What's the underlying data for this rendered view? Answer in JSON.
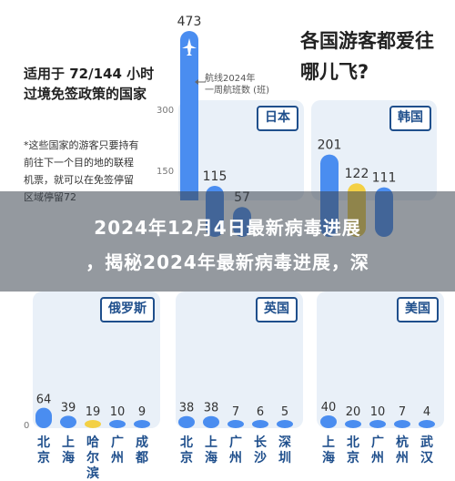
{
  "note": {
    "title": "适用于 72/144 小时过境免签政策的国家",
    "body": "*这些国家的游客只要持有前往下一个目的地的联程机票，就可以在免签停留区域停留72"
  },
  "headline": "各国游客都爱往哪儿飞?",
  "callout": {
    "line1": "航线2024年",
    "line2": "一周航班数 (班)"
  },
  "banner": {
    "line1": "2024年12月4日最新病毒进展",
    "line2": "，揭秘2024年最新病毒进展，深"
  },
  "axis": {
    "t300": "300",
    "t150": "150",
    "t0": "0"
  },
  "colors": {
    "primary": "#4a8df0",
    "highlight": "#f3d045",
    "panel": "#e9f0f8",
    "tag": "#1f4f8c"
  },
  "chart_data": [
    {
      "type": "bar",
      "title": "日本",
      "ylabel": "",
      "ylim": [
        0,
        473
      ],
      "categories": [
        "",
        "",
        ""
      ],
      "values": [
        473,
        115,
        57
      ],
      "data_labels": [
        "473",
        "115",
        "57"
      ],
      "partial": true
    },
    {
      "type": "bar",
      "title": "韩国",
      "ylim": [
        0,
        473
      ],
      "categories": [
        "",
        "",
        "",
        ""
      ],
      "values": [
        201,
        122,
        111,
        0
      ],
      "data_labels": [
        "201",
        "122",
        "111",
        ""
      ],
      "partial": true
    },
    {
      "type": "bar",
      "title": "俄罗斯",
      "ylim": [
        0,
        300
      ],
      "categories": [
        "北京",
        "上海",
        "哈尔滨",
        "广州",
        "成都"
      ],
      "values": [
        64,
        39,
        19,
        10,
        9
      ],
      "data_labels": [
        "64",
        "39",
        "19",
        "10",
        "9"
      ],
      "highlight_index": 2
    },
    {
      "type": "bar",
      "title": "英国",
      "ylim": [
        0,
        300
      ],
      "categories": [
        "北京",
        "上海",
        "广州",
        "长沙",
        "深圳"
      ],
      "values": [
        38,
        38,
        7,
        6,
        5
      ],
      "data_labels": [
        "38",
        "38",
        "7",
        "6",
        "5"
      ]
    },
    {
      "type": "bar",
      "title": "美国",
      "ylim": [
        0,
        300
      ],
      "categories": [
        "上海",
        "北京",
        "广州",
        "杭州",
        "武汉"
      ],
      "values": [
        40,
        20,
        10,
        7,
        4
      ],
      "data_labels": [
        "40",
        "20",
        "10",
        "7",
        "4"
      ]
    }
  ]
}
